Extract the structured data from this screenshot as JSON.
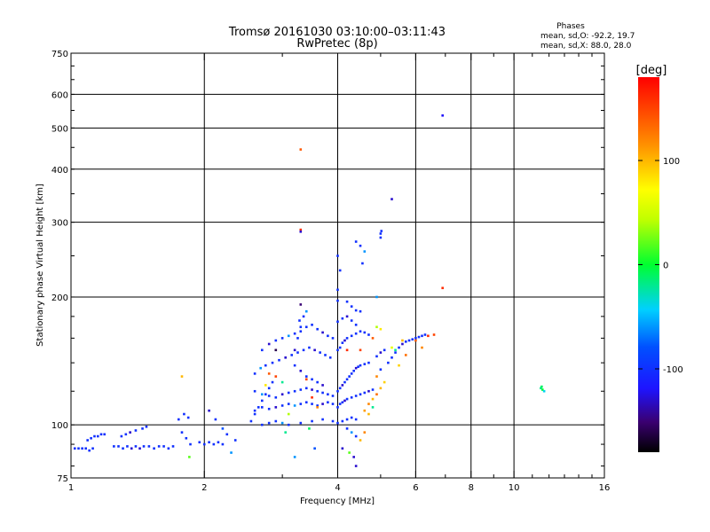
{
  "header": {
    "title": "Tromsø 20161030 03:10:00–03:11:43",
    "subtitle": "RwPretec (8p)"
  },
  "phase_box": {
    "heading": "Phases",
    "line_o": "mean, sd,O: -92.2, 19.7",
    "line_x": "mean, sd,X:  88.0, 28.0"
  },
  "colorbar": {
    "unit": "[deg]",
    "min": -180,
    "max": 180,
    "tick_values": [
      100,
      0,
      -100
    ],
    "tick_labels": [
      "100",
      "0",
      "-100"
    ]
  },
  "chart_data": {
    "type": "scatter",
    "xlabel": "Frequency [MHz]",
    "ylabel": "Stationary phase Virtual Height [km]",
    "x_scale": "log",
    "y_scale": "log",
    "xlim": [
      1,
      16
    ],
    "ylim": [
      75,
      750
    ],
    "x_ticks": [
      1,
      2,
      4,
      6,
      8,
      10,
      16
    ],
    "x_tick_labels": [
      "1",
      "2",
      "4",
      "6",
      "8",
      "10",
      "16"
    ],
    "x_grid": [
      2,
      4,
      6,
      8,
      10
    ],
    "y_ticks": [
      75,
      100,
      200,
      300,
      400,
      500,
      600,
      750
    ],
    "y_tick_labels": [
      "75",
      "100",
      "200",
      "300",
      "400",
      "500",
      "600",
      "750"
    ],
    "y_grid": [
      100,
      200,
      300,
      400,
      500,
      600
    ],
    "grid": true,
    "color_encoding": "phase [deg]",
    "points": [
      [
        1.02,
        88,
        -100
      ],
      [
        1.04,
        88,
        -100
      ],
      [
        1.06,
        88,
        -100
      ],
      [
        1.08,
        88,
        -100
      ],
      [
        1.1,
        87,
        -100
      ],
      [
        1.12,
        88,
        -100
      ],
      [
        1.09,
        92,
        -100
      ],
      [
        1.11,
        93,
        -100
      ],
      [
        1.13,
        94,
        -100
      ],
      [
        1.15,
        94,
        -100
      ],
      [
        1.17,
        95,
        -100
      ],
      [
        1.19,
        95,
        -100
      ],
      [
        1.25,
        89,
        -100
      ],
      [
        1.28,
        89,
        -100
      ],
      [
        1.31,
        88,
        -100
      ],
      [
        1.34,
        89,
        -100
      ],
      [
        1.37,
        88,
        -130
      ],
      [
        1.4,
        89,
        -100
      ],
      [
        1.43,
        88,
        -130
      ],
      [
        1.46,
        89,
        -100
      ],
      [
        1.5,
        89,
        -100
      ],
      [
        1.54,
        88,
        -100
      ],
      [
        1.58,
        89,
        -100
      ],
      [
        1.62,
        89,
        -100
      ],
      [
        1.66,
        88,
        -100
      ],
      [
        1.7,
        89,
        -100
      ],
      [
        1.3,
        94,
        -100
      ],
      [
        1.33,
        95,
        -100
      ],
      [
        1.36,
        96,
        -130
      ],
      [
        1.4,
        97,
        -100
      ],
      [
        1.45,
        98,
        -100
      ],
      [
        1.48,
        99,
        -100
      ],
      [
        1.75,
        103,
        -100
      ],
      [
        1.8,
        106,
        -100
      ],
      [
        1.84,
        104,
        -100
      ],
      [
        1.78,
        96,
        -100
      ],
      [
        1.82,
        93,
        -100
      ],
      [
        1.86,
        90,
        -100
      ],
      [
        1.95,
        91,
        -100
      ],
      [
        2.0,
        90,
        -100
      ],
      [
        2.05,
        91,
        -100
      ],
      [
        2.1,
        90,
        -100
      ],
      [
        2.15,
        91,
        -100
      ],
      [
        2.2,
        90,
        -100
      ],
      [
        2.05,
        108,
        -130
      ],
      [
        2.12,
        103,
        -100
      ],
      [
        2.2,
        98,
        -80
      ],
      [
        2.25,
        95,
        -100
      ],
      [
        2.35,
        92,
        -100
      ],
      [
        1.78,
        130,
        100
      ],
      [
        1.85,
        84,
        20
      ],
      [
        2.3,
        86,
        -60
      ],
      [
        2.55,
        102,
        -100
      ],
      [
        2.6,
        106,
        -100
      ],
      [
        2.65,
        110,
        -100
      ],
      [
        2.7,
        114,
        -100
      ],
      [
        2.75,
        118,
        -100
      ],
      [
        2.8,
        122,
        -100
      ],
      [
        2.85,
        126,
        -100
      ],
      [
        2.6,
        132,
        -100
      ],
      [
        2.68,
        136,
        -60
      ],
      [
        2.75,
        138,
        -100
      ],
      [
        2.85,
        140,
        -100
      ],
      [
        2.95,
        142,
        -100
      ],
      [
        3.05,
        144,
        -130
      ],
      [
        3.15,
        146,
        -100
      ],
      [
        3.25,
        148,
        -100
      ],
      [
        3.35,
        150,
        -100
      ],
      [
        3.45,
        152,
        -100
      ],
      [
        3.55,
        150,
        -130
      ],
      [
        3.65,
        148,
        -100
      ],
      [
        3.75,
        146,
        -100
      ],
      [
        3.85,
        144,
        -100
      ],
      [
        2.7,
        150,
        -100
      ],
      [
        2.8,
        155,
        -130
      ],
      [
        2.9,
        158,
        -100
      ],
      [
        3.0,
        160,
        -100
      ],
      [
        3.1,
        162,
        -60
      ],
      [
        3.2,
        164,
        -100
      ],
      [
        3.3,
        166,
        -100
      ],
      [
        3.4,
        170,
        -100
      ],
      [
        3.5,
        172,
        -100
      ],
      [
        3.6,
        168,
        -100
      ],
      [
        3.7,
        165,
        -130
      ],
      [
        3.8,
        162,
        -100
      ],
      [
        3.9,
        160,
        -100
      ],
      [
        2.6,
        120,
        -100
      ],
      [
        2.7,
        118,
        -60
      ],
      [
        2.8,
        117,
        -100
      ],
      [
        2.9,
        116,
        -100
      ],
      [
        3.0,
        118,
        -130
      ],
      [
        3.1,
        119,
        -100
      ],
      [
        3.2,
        120,
        -100
      ],
      [
        3.3,
        121,
        -100
      ],
      [
        3.4,
        122,
        -100
      ],
      [
        3.5,
        121,
        -130
      ],
      [
        3.6,
        120,
        -100
      ],
      [
        3.7,
        119,
        -100
      ],
      [
        3.8,
        118,
        -100
      ],
      [
        3.9,
        117,
        -100
      ],
      [
        2.6,
        108,
        -100
      ],
      [
        2.7,
        110,
        -100
      ],
      [
        2.8,
        109,
        -100
      ],
      [
        2.9,
        110,
        -130
      ],
      [
        3.0,
        111,
        -100
      ],
      [
        3.1,
        112,
        -100
      ],
      [
        3.2,
        111,
        -60
      ],
      [
        3.3,
        112,
        -100
      ],
      [
        3.4,
        113,
        -100
      ],
      [
        3.5,
        112,
        -100
      ],
      [
        3.6,
        111,
        -100
      ],
      [
        3.7,
        112,
        -130
      ],
      [
        3.8,
        113,
        -100
      ],
      [
        3.9,
        112,
        -100
      ],
      [
        2.7,
        100,
        -100
      ],
      [
        2.8,
        101,
        -100
      ],
      [
        2.9,
        102,
        -100
      ],
      [
        3.0,
        101,
        -60
      ],
      [
        3.1,
        100,
        -100
      ],
      [
        3.3,
        101,
        -100
      ],
      [
        3.5,
        102,
        -100
      ],
      [
        3.7,
        103,
        -100
      ],
      [
        3.9,
        102,
        -100
      ],
      [
        3.2,
        150,
        -130
      ],
      [
        3.25,
        160,
        -100
      ],
      [
        3.3,
        170,
        -100
      ],
      [
        3.35,
        180,
        -100
      ],
      [
        3.4,
        185,
        -60
      ],
      [
        3.28,
        176,
        -100
      ],
      [
        3.2,
        138,
        -100
      ],
      [
        3.3,
        134,
        -130
      ],
      [
        3.4,
        130,
        -100
      ],
      [
        3.5,
        128,
        -100
      ],
      [
        3.6,
        126,
        -100
      ],
      [
        3.7,
        124,
        -130
      ],
      [
        2.8,
        132,
        140
      ],
      [
        2.9,
        130,
        150
      ],
      [
        3.0,
        126,
        -20
      ],
      [
        3.4,
        128,
        150
      ],
      [
        3.5,
        116,
        160
      ],
      [
        3.6,
        110,
        120
      ],
      [
        2.75,
        124,
        80
      ],
      [
        3.1,
        106,
        40
      ],
      [
        3.05,
        96,
        -20
      ],
      [
        3.2,
        84,
        -60
      ],
      [
        3.45,
        98,
        -10
      ],
      [
        3.55,
        88,
        -80
      ],
      [
        3.3,
        288,
        160
      ],
      [
        3.3,
        285,
        -130
      ],
      [
        3.3,
        445,
        140
      ],
      [
        2.9,
        150,
        -160
      ],
      [
        3.3,
        192,
        -150
      ],
      [
        4.0,
        120,
        -100
      ],
      [
        4.05,
        122,
        -100
      ],
      [
        4.1,
        124,
        -130
      ],
      [
        4.15,
        126,
        -100
      ],
      [
        4.2,
        128,
        -100
      ],
      [
        4.25,
        130,
        -100
      ],
      [
        4.3,
        132,
        -100
      ],
      [
        4.35,
        134,
        -100
      ],
      [
        4.4,
        136,
        -130
      ],
      [
        4.45,
        137,
        -100
      ],
      [
        4.5,
        138,
        -100
      ],
      [
        4.6,
        139,
        -100
      ],
      [
        4.7,
        140,
        -100
      ],
      [
        4.0,
        110,
        -100
      ],
      [
        4.05,
        112,
        -100
      ],
      [
        4.1,
        113,
        -100
      ],
      [
        4.15,
        114,
        -130
      ],
      [
        4.2,
        115,
        -100
      ],
      [
        4.3,
        116,
        -100
      ],
      [
        4.4,
        117,
        -100
      ],
      [
        4.5,
        118,
        -100
      ],
      [
        4.6,
        119,
        -100
      ],
      [
        4.7,
        120,
        -130
      ],
      [
        4.8,
        121,
        -100
      ],
      [
        4.0,
        150,
        -100
      ],
      [
        4.05,
        152,
        -100
      ],
      [
        4.1,
        156,
        -100
      ],
      [
        4.15,
        158,
        -130
      ],
      [
        4.2,
        160,
        -100
      ],
      [
        4.3,
        162,
        -100
      ],
      [
        4.4,
        164,
        -100
      ],
      [
        4.5,
        166,
        -100
      ],
      [
        4.6,
        165,
        -100
      ],
      [
        4.7,
        163,
        -100
      ],
      [
        4.0,
        175,
        -100
      ],
      [
        4.1,
        178,
        -100
      ],
      [
        4.2,
        180,
        -130
      ],
      [
        4.3,
        176,
        -100
      ],
      [
        4.4,
        172,
        -100
      ],
      [
        4.0,
        196,
        -100
      ],
      [
        4.0,
        208,
        -100
      ],
      [
        4.0,
        250,
        -100
      ],
      [
        4.05,
        231,
        -100
      ],
      [
        4.0,
        101,
        -100
      ],
      [
        4.1,
        102,
        -100
      ],
      [
        4.2,
        103,
        -100
      ],
      [
        4.3,
        104,
        -100
      ],
      [
        4.4,
        103,
        -100
      ],
      [
        4.2,
        98,
        -100
      ],
      [
        4.3,
        96,
        -60
      ],
      [
        4.4,
        94,
        -100
      ],
      [
        4.5,
        92,
        100
      ],
      [
        4.6,
        96,
        120
      ],
      [
        4.1,
        88,
        -130
      ],
      [
        4.35,
        84,
        -130
      ],
      [
        4.4,
        80,
        -130
      ],
      [
        4.25,
        86,
        20
      ],
      [
        4.2,
        195,
        -100
      ],
      [
        4.3,
        190,
        -100
      ],
      [
        4.4,
        186,
        -100
      ],
      [
        4.5,
        185,
        -100
      ],
      [
        4.4,
        270,
        -100
      ],
      [
        4.5,
        264,
        -100
      ],
      [
        4.6,
        256,
        -60
      ],
      [
        4.55,
        240,
        -100
      ],
      [
        4.7,
        112,
        120
      ],
      [
        4.8,
        115,
        100
      ],
      [
        4.9,
        118,
        130
      ],
      [
        5.0,
        122,
        100
      ],
      [
        5.1,
        126,
        90
      ],
      [
        4.6,
        108,
        110
      ],
      [
        4.7,
        106,
        100
      ],
      [
        4.8,
        110,
        -20
      ],
      [
        4.9,
        130,
        120
      ],
      [
        5.0,
        135,
        -100
      ],
      [
        4.9,
        145,
        -100
      ],
      [
        5.0,
        148,
        -130
      ],
      [
        5.1,
        150,
        -100
      ],
      [
        4.2,
        150,
        160
      ],
      [
        4.5,
        150,
        150
      ],
      [
        4.8,
        160,
        140
      ],
      [
        5.0,
        282,
        -100
      ],
      [
        5.02,
        286,
        -100
      ],
      [
        5.0,
        276,
        -100
      ],
      [
        4.9,
        200,
        -60
      ],
      [
        4.9,
        170,
        40
      ],
      [
        5.0,
        168,
        80
      ],
      [
        5.3,
        340,
        -130
      ],
      [
        5.2,
        140,
        -100
      ],
      [
        5.3,
        144,
        -100
      ],
      [
        5.4,
        148,
        -100
      ],
      [
        5.5,
        152,
        -100
      ],
      [
        5.6,
        155,
        -130
      ],
      [
        5.7,
        157,
        -100
      ],
      [
        5.8,
        158,
        -100
      ],
      [
        5.9,
        159,
        -100
      ],
      [
        6.0,
        160,
        -100
      ],
      [
        6.1,
        161,
        -100
      ],
      [
        6.2,
        162,
        -100
      ],
      [
        6.3,
        163,
        -100
      ],
      [
        6.4,
        162,
        160
      ],
      [
        6.6,
        163,
        150
      ],
      [
        5.4,
        150,
        -20
      ],
      [
        5.6,
        158,
        100
      ],
      [
        6.0,
        158,
        140
      ],
      [
        5.3,
        152,
        60
      ],
      [
        5.5,
        138,
        90
      ],
      [
        5.7,
        146,
        130
      ],
      [
        6.2,
        152,
        120
      ],
      [
        6.9,
        210,
        160
      ],
      [
        6.9,
        535,
        -120
      ],
      [
        11.5,
        122,
        -20
      ],
      [
        11.6,
        121,
        0
      ],
      [
        11.7,
        120,
        -40
      ],
      [
        11.55,
        123,
        -10
      ]
    ]
  }
}
